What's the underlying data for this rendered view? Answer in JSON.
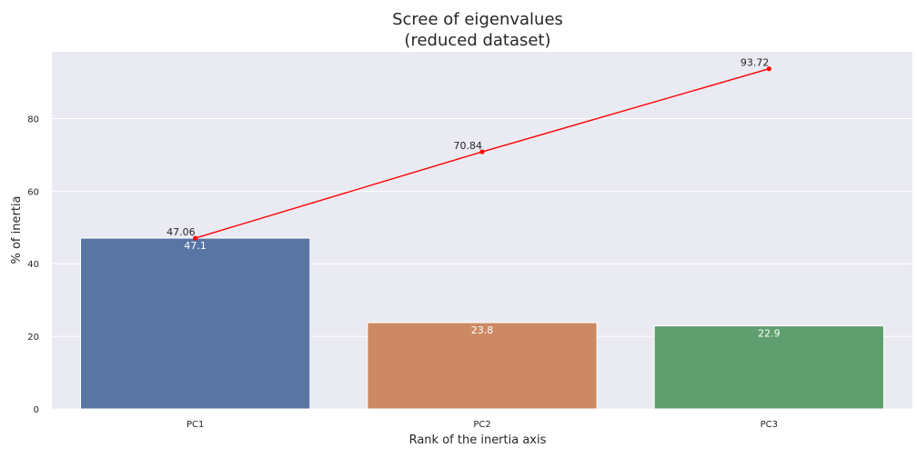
{
  "chart_data": {
    "type": "bar",
    "title_line1": "Scree of eigenvalues",
    "title_line2": "(reduced dataset)",
    "xlabel": "Rank of the inertia axis",
    "ylabel": "% of inertia",
    "categories": [
      "PC1",
      "PC2",
      "PC3"
    ],
    "values": [
      47.06,
      23.78,
      22.88
    ],
    "bar_labels": [
      "47.1",
      "23.8",
      "22.9"
    ],
    "bar_colors": [
      "#5875a4",
      "#cc8963",
      "#5f9e6e"
    ],
    "cumulative": {
      "values": [
        47.06,
        70.84,
        93.72
      ],
      "labels": [
        "47.06",
        "70.84",
        "93.72"
      ],
      "color": "#ff0000"
    },
    "ylim": [
      0,
      98.4
    ],
    "yticks": [
      0,
      20,
      40,
      60,
      80
    ],
    "ytick_labels": [
      "0",
      "20",
      "40",
      "60",
      "80"
    ],
    "grid": true,
    "background": "#eaeaf2"
  }
}
